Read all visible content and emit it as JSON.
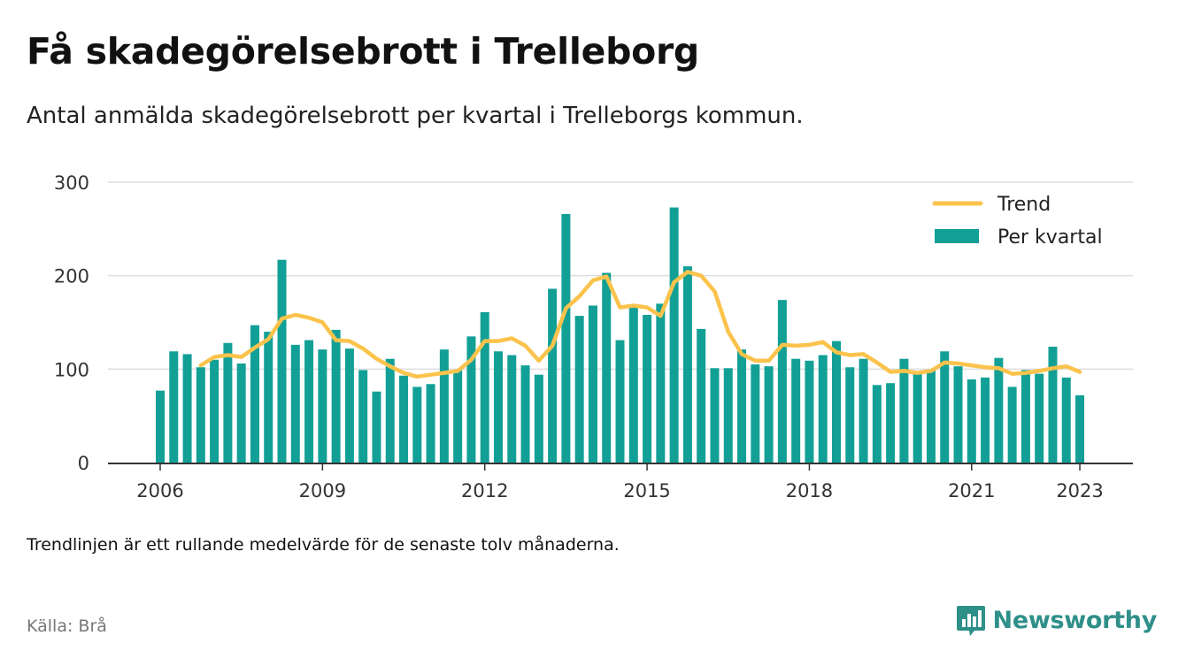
{
  "title": "Få skadegörelsebrott i Trelleborg",
  "subtitle": "Antal anmälda skadegörelsebrott per kvartal i Trelleborgs kommun.",
  "footnote": "Trendlinjen är ett rullande medelvärde för de senaste tolv månaderna.",
  "source": "Källa: Brå",
  "brand": {
    "name": "Newsworthy",
    "icon": "newsworthy-logo-icon"
  },
  "colors": {
    "bars": "#12a096",
    "trend": "#fbc34c",
    "grid": "#dddddd",
    "axis": "#333333"
  },
  "chart_data": {
    "type": "bar",
    "title": "Få skadegörelsebrott i Trelleborg",
    "ylim": [
      0,
      300
    ],
    "yticks": [
      0,
      100,
      200,
      300
    ],
    "xticks": [
      "2006",
      "2009",
      "2012",
      "2015",
      "2018",
      "2021",
      "2023"
    ],
    "grid": true,
    "legend_position": "top-right",
    "x_start": "2006 Q1",
    "x_end": "2023 Q1",
    "series": [
      {
        "name": "Per kvartal",
        "type": "bar",
        "values": [
          77,
          119,
          116,
          102,
          110,
          128,
          106,
          147,
          140,
          217,
          126,
          131,
          121,
          142,
          122,
          99,
          76,
          111,
          93,
          81,
          84,
          121,
          99,
          135,
          161,
          119,
          115,
          104,
          94,
          186,
          266,
          157,
          168,
          203,
          131,
          166,
          158,
          170,
          273,
          210,
          143,
          101,
          101,
          121,
          105,
          103,
          174,
          111,
          109,
          115,
          130,
          102,
          111,
          83,
          85,
          111,
          97,
          99,
          119,
          103,
          89,
          91,
          112,
          81,
          99,
          95,
          124,
          91,
          72
        ],
        "quarters": [
          "2006 Q1",
          "2006 Q2",
          "2006 Q3",
          "2006 Q4",
          "2007 Q1",
          "2007 Q2",
          "2007 Q3",
          "2007 Q4",
          "2008 Q1",
          "2008 Q2",
          "2008 Q3",
          "2008 Q4",
          "2009 Q1",
          "2009 Q2",
          "2009 Q3",
          "2009 Q4",
          "2010 Q1",
          "2010 Q2",
          "2010 Q3",
          "2010 Q4",
          "2011 Q1",
          "2011 Q2",
          "2011 Q3",
          "2011 Q4",
          "2012 Q1",
          "2012 Q2",
          "2012 Q3",
          "2012 Q4",
          "2013 Q1",
          "2013 Q2",
          "2013 Q3",
          "2013 Q4",
          "2014 Q1",
          "2014 Q2",
          "2014 Q3",
          "2014 Q4",
          "2015 Q1",
          "2015 Q2",
          "2015 Q3",
          "2015 Q4",
          "2016 Q1",
          "2016 Q2",
          "2016 Q3",
          "2016 Q4",
          "2017 Q1",
          "2017 Q2",
          "2017 Q3",
          "2017 Q4",
          "2018 Q1",
          "2018 Q2",
          "2018 Q3",
          "2018 Q4",
          "2019 Q1",
          "2019 Q2",
          "2019 Q3",
          "2019 Q4",
          "2020 Q1",
          "2020 Q2",
          "2020 Q3",
          "2020 Q4",
          "2021 Q1",
          "2021 Q2",
          "2021 Q3",
          "2021 Q4",
          "2022 Q1",
          "2022 Q2",
          "2022 Q3",
          "2022 Q4",
          "2023 Q1"
        ]
      },
      {
        "name": "Trend",
        "type": "line",
        "start_index": 3,
        "values": [
          104,
          113,
          115,
          113,
          123,
          132,
          154,
          158,
          155,
          150,
          131,
          130,
          122,
          111,
          103,
          96,
          92,
          94,
          96,
          98,
          110,
          130,
          130,
          133,
          125,
          109,
          125,
          165,
          178,
          195,
          199,
          166,
          168,
          166,
          157,
          193,
          204,
          200,
          183,
          140,
          116,
          109,
          109,
          126,
          125,
          126,
          129,
          118,
          115,
          116,
          107,
          97,
          98,
          96,
          98,
          107,
          106,
          104,
          102,
          101,
          95,
          96,
          98,
          101,
          103,
          97
        ]
      }
    ]
  }
}
